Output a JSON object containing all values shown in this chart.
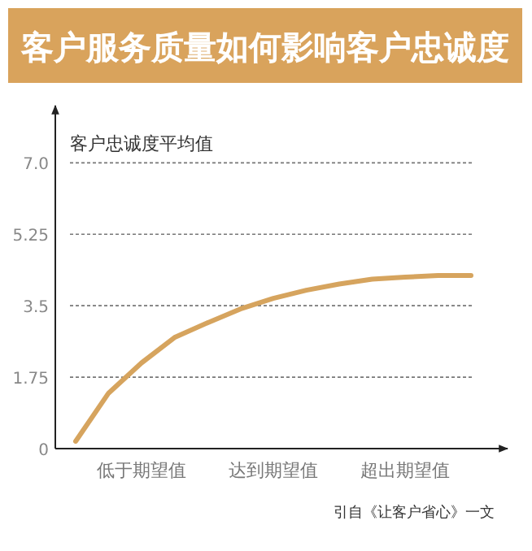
{
  "chart_data": {
    "type": "line",
    "title": "客户服务质量如何影响客户忠诚度",
    "ylabel": "客户忠诚度平均值",
    "categories": [
      null,
      null,
      "低于期望值",
      null,
      null,
      null,
      "达到期望值",
      null,
      null,
      null,
      "超出期望值",
      null,
      null
    ],
    "ylim": [
      0,
      8.4
    ],
    "yticks": [
      0,
      1.75,
      3.5,
      5.25,
      {
        "value": 7,
        "label": "7.0"
      }
    ],
    "grid": "y",
    "marker": "none",
    "line_style": "solid",
    "series": [
      {
        "color": "#d6a45e",
        "values": [
          0.18,
          1.36,
          2.1,
          2.72,
          3.08,
          3.42,
          3.68,
          3.88,
          4.03,
          4.15,
          4.2,
          4.24,
          4.24
        ]
      }
    ],
    "annotations": [
      "引自《让客户省心》一文"
    ]
  }
}
